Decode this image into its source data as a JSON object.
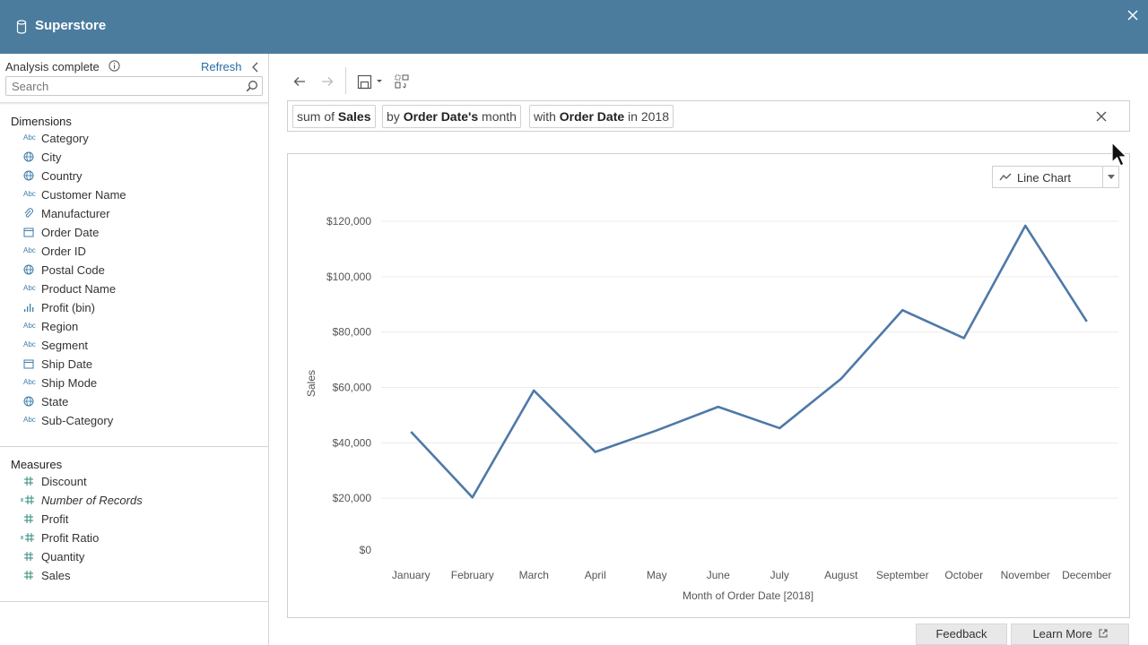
{
  "header": {
    "title": "Superstore",
    "close_icon": "close-icon"
  },
  "sidebar": {
    "status": "Analysis complete",
    "refresh_label": "Refresh",
    "search_placeholder": "Search",
    "dimensions_title": "Dimensions",
    "dimensions": [
      {
        "label": "Category",
        "icon": "Abc"
      },
      {
        "label": "City",
        "icon": "globe"
      },
      {
        "label": "Country",
        "icon": "globe"
      },
      {
        "label": "Customer Name",
        "icon": "Abc"
      },
      {
        "label": "Manufacturer",
        "icon": "paperclip"
      },
      {
        "label": "Order Date",
        "icon": "calendar"
      },
      {
        "label": "Order ID",
        "icon": "Abc"
      },
      {
        "label": "Postal Code",
        "icon": "globe"
      },
      {
        "label": "Product Name",
        "icon": "Abc"
      },
      {
        "label": "Profit (bin)",
        "icon": "bins"
      },
      {
        "label": "Region",
        "icon": "Abc"
      },
      {
        "label": "Segment",
        "icon": "Abc"
      },
      {
        "label": "Ship Date",
        "icon": "calendar"
      },
      {
        "label": "Ship Mode",
        "icon": "Abc"
      },
      {
        "label": "State",
        "icon": "globe"
      },
      {
        "label": "Sub-Category",
        "icon": "Abc"
      }
    ],
    "measures_title": "Measures",
    "measures": [
      {
        "label": "Discount",
        "icon": "hash",
        "italic": false
      },
      {
        "label": "Number of Records",
        "icon": "hash-calc",
        "italic": true
      },
      {
        "label": "Profit",
        "icon": "hash",
        "italic": false
      },
      {
        "label": "Profit Ratio",
        "icon": "hash-calc",
        "italic": false
      },
      {
        "label": "Quantity",
        "icon": "hash",
        "italic": false
      },
      {
        "label": "Sales",
        "icon": "hash",
        "italic": false
      }
    ]
  },
  "query": {
    "pill1": {
      "pre": "sum of ",
      "bold": "Sales",
      "post": ""
    },
    "pill2": {
      "pre": "by ",
      "bold": "Order Date's",
      "post": " month"
    },
    "pill3": {
      "pre": "with ",
      "bold": "Order Date",
      "post": " in 2018"
    }
  },
  "chart_type_label": "Line Chart",
  "footer": {
    "feedback": "Feedback",
    "learn_more": "Learn More"
  },
  "colors": {
    "header": "#4b7c9e",
    "line": "#4e79a7",
    "accent_link": "#2a6ca3"
  },
  "chart_data": {
    "type": "line",
    "categories": [
      "January",
      "February",
      "March",
      "April",
      "May",
      "June",
      "July",
      "August",
      "September",
      "October",
      "November",
      "December"
    ],
    "series": [
      {
        "values": [
          44000,
          20300,
          58900,
          36700,
          44500,
          53000,
          45300,
          63100,
          87900,
          77800,
          118400,
          83800
        ]
      }
    ],
    "xlabel": "Month of Order Date [2018]",
    "ylabel": "Sales",
    "yticks": [
      "$0",
      "$20,000",
      "$40,000",
      "$60,000",
      "$80,000",
      "$100,000",
      "$120,000"
    ],
    "ylim": [
      0,
      120000
    ],
    "grid": true
  }
}
